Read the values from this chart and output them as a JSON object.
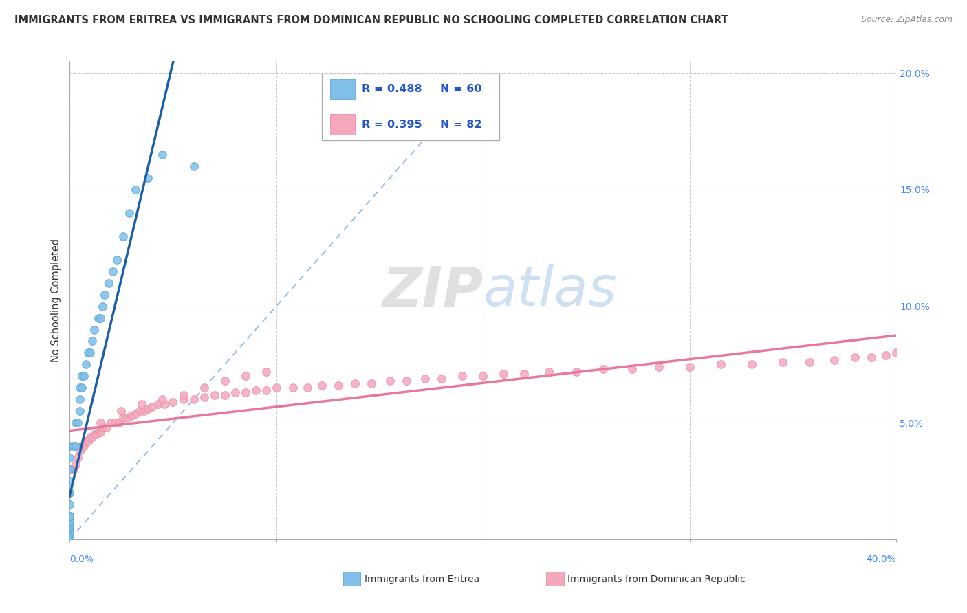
{
  "title": "IMMIGRANTS FROM ERITREA VS IMMIGRANTS FROM DOMINICAN REPUBLIC NO SCHOOLING COMPLETED CORRELATION CHART",
  "source": "Source: ZipAtlas.com",
  "ylabel": "No Schooling Completed",
  "r_eritrea": 0.488,
  "n_eritrea": 60,
  "r_dr": 0.395,
  "n_dr": 82,
  "color_eritrea_fill": "#7fbfe8",
  "color_eritrea_edge": "#5aaad4",
  "color_eritrea_line": "#1a5fa8",
  "color_dr_fill": "#f5a8bc",
  "color_dr_edge": "#e890a8",
  "color_dr_line": "#e8789a",
  "color_diag": "#90b8e0",
  "color_legend_text": "#2255cc",
  "color_axis_pct": "#4488ff",
  "watermark_zip_color": "#c0c0c0",
  "watermark_atlas_color": "#a0c0e8",
  "xlim": [
    0.0,
    0.4
  ],
  "ylim": [
    0.0,
    0.205
  ],
  "xticks": [
    0.0,
    0.1,
    0.2,
    0.3,
    0.4
  ],
  "ytick_vals": [
    0.05,
    0.1,
    0.15,
    0.2
  ],
  "ytick_labels": [
    "5.0%",
    "10.0%",
    "15.0%",
    "20.0%"
  ],
  "legend_label_1": "Immigrants from Eritrea",
  "legend_label_2": "Immigrants from Dominican Republic",
  "eritrea_x": [
    0.0,
    0.0,
    0.0,
    0.0,
    0.0,
    0.0,
    0.0,
    0.0,
    0.0,
    0.0,
    0.0,
    0.0,
    0.0,
    0.0,
    0.0,
    0.0,
    0.0,
    0.0,
    0.0,
    0.0,
    0.0,
    0.0,
    0.0,
    0.0,
    0.0,
    0.0,
    0.0,
    0.0,
    0.0,
    0.0,
    0.0,
    0.0,
    0.002,
    0.003,
    0.003,
    0.004,
    0.005,
    0.005,
    0.005,
    0.006,
    0.006,
    0.007,
    0.008,
    0.009,
    0.01,
    0.011,
    0.012,
    0.014,
    0.015,
    0.016,
    0.017,
    0.019,
    0.021,
    0.023,
    0.026,
    0.029,
    0.032,
    0.038,
    0.045,
    0.06
  ],
  "eritrea_y": [
    -0.012,
    -0.01,
    -0.009,
    -0.008,
    -0.007,
    -0.006,
    -0.005,
    -0.004,
    -0.003,
    -0.002,
    -0.001,
    0.0,
    0.0,
    0.0,
    0.001,
    0.002,
    0.003,
    0.004,
    0.005,
    0.006,
    0.007,
    0.008,
    0.01,
    0.01,
    0.01,
    0.015,
    0.02,
    0.02,
    0.025,
    0.03,
    0.035,
    0.04,
    0.04,
    0.04,
    0.05,
    0.05,
    0.055,
    0.06,
    0.065,
    0.065,
    0.07,
    0.07,
    0.075,
    0.08,
    0.08,
    0.085,
    0.09,
    0.095,
    0.095,
    0.1,
    0.105,
    0.11,
    0.115,
    0.12,
    0.13,
    0.14,
    0.15,
    0.155,
    0.165,
    0.16
  ],
  "dr_x": [
    0.0,
    0.0,
    0.0,
    0.001,
    0.002,
    0.003,
    0.004,
    0.005,
    0.006,
    0.007,
    0.008,
    0.009,
    0.01,
    0.011,
    0.012,
    0.013,
    0.014,
    0.015,
    0.016,
    0.018,
    0.02,
    0.022,
    0.024,
    0.026,
    0.028,
    0.03,
    0.032,
    0.034,
    0.036,
    0.038,
    0.04,
    0.043,
    0.046,
    0.05,
    0.055,
    0.06,
    0.065,
    0.07,
    0.075,
    0.08,
    0.085,
    0.09,
    0.095,
    0.1,
    0.108,
    0.115,
    0.122,
    0.13,
    0.138,
    0.146,
    0.155,
    0.163,
    0.172,
    0.18,
    0.19,
    0.2,
    0.21,
    0.22,
    0.232,
    0.245,
    0.258,
    0.272,
    0.285,
    0.3,
    0.315,
    0.33,
    0.345,
    0.358,
    0.37,
    0.38,
    0.388,
    0.395,
    0.4,
    0.015,
    0.025,
    0.035,
    0.045,
    0.055,
    0.065,
    0.075,
    0.085,
    0.095
  ],
  "dr_y": [
    -0.005,
    0.01,
    0.02,
    0.03,
    0.03,
    0.032,
    0.035,
    0.038,
    0.04,
    0.04,
    0.042,
    0.042,
    0.044,
    0.044,
    0.045,
    0.045,
    0.046,
    0.046,
    0.048,
    0.048,
    0.05,
    0.05,
    0.05,
    0.052,
    0.052,
    0.053,
    0.054,
    0.055,
    0.055,
    0.056,
    0.057,
    0.058,
    0.058,
    0.059,
    0.06,
    0.06,
    0.061,
    0.062,
    0.062,
    0.063,
    0.063,
    0.064,
    0.064,
    0.065,
    0.065,
    0.065,
    0.066,
    0.066,
    0.067,
    0.067,
    0.068,
    0.068,
    0.069,
    0.069,
    0.07,
    0.07,
    0.071,
    0.071,
    0.072,
    0.072,
    0.073,
    0.073,
    0.074,
    0.074,
    0.075,
    0.075,
    0.076,
    0.076,
    0.077,
    0.078,
    0.078,
    0.079,
    0.08,
    0.05,
    0.055,
    0.058,
    0.06,
    0.062,
    0.065,
    0.068,
    0.07,
    0.072
  ]
}
